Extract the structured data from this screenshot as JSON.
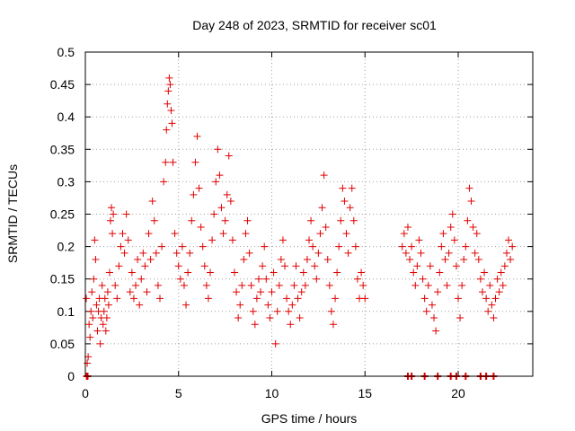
{
  "chart_data": {
    "type": "scatter",
    "title": "Day 248 of 2023, SRMTID for receiver sc01",
    "xlabel": "GPS time / hours",
    "ylabel": "SRMTID / TECUs",
    "xlim": [
      0,
      24
    ],
    "ylim": [
      0,
      0.5
    ],
    "x_ticks": [
      0,
      5,
      10,
      15,
      20
    ],
    "x_tick_labels": [
      "0",
      "5",
      "10",
      "15",
      "20"
    ],
    "y_ticks": [
      0,
      0.05,
      0.1,
      0.15,
      0.2,
      0.25,
      0.3,
      0.35,
      0.4,
      0.45,
      0.5
    ],
    "y_tick_labels": [
      "0",
      "0.05",
      "0.1",
      "0.15",
      "0.2",
      "0.25",
      "0.3",
      "0.35",
      "0.4",
      "0.45",
      "0.5"
    ],
    "grid": true,
    "legend": "none",
    "series": [
      {
        "name": "SRMTID",
        "color": "#e00000",
        "marker": "plus",
        "points": [
          [
            0.05,
            0.12
          ],
          [
            0.1,
            0.02
          ],
          [
            0.15,
            0.03
          ],
          [
            0.2,
            0.08
          ],
          [
            0.25,
            0.06
          ],
          [
            0.3,
            0.1
          ],
          [
            0.35,
            0.13
          ],
          [
            0.4,
            0.09
          ],
          [
            0.45,
            0.15
          ],
          [
            0.5,
            0.21
          ],
          [
            0.55,
            0.18
          ],
          [
            0.6,
            0.11
          ],
          [
            0.65,
            0.07
          ],
          [
            0.7,
            0.1
          ],
          [
            0.75,
            0.12
          ],
          [
            0.8,
            0.05
          ],
          [
            0.85,
            0.09
          ],
          [
            0.9,
            0.14
          ],
          [
            0.95,
            0.08
          ],
          [
            1.0,
            0.1
          ],
          [
            1.05,
            0.12
          ],
          [
            1.1,
            0.07
          ],
          [
            1.15,
            0.09
          ],
          [
            1.2,
            0.13
          ],
          [
            1.25,
            0.11
          ],
          [
            1.3,
            0.16
          ],
          [
            1.35,
            0.24
          ],
          [
            1.4,
            0.26
          ],
          [
            1.45,
            0.22
          ],
          [
            1.5,
            0.25
          ],
          [
            1.6,
            0.14
          ],
          [
            1.7,
            0.12
          ],
          [
            1.8,
            0.17
          ],
          [
            1.9,
            0.2
          ],
          [
            2.0,
            0.22
          ],
          [
            2.1,
            0.19
          ],
          [
            2.2,
            0.25
          ],
          [
            2.3,
            0.21
          ],
          [
            2.4,
            0.13
          ],
          [
            2.5,
            0.16
          ],
          [
            2.6,
            0.12
          ],
          [
            2.7,
            0.14
          ],
          [
            2.8,
            0.18
          ],
          [
            2.9,
            0.11
          ],
          [
            3.0,
            0.15
          ],
          [
            3.1,
            0.19
          ],
          [
            3.2,
            0.17
          ],
          [
            3.3,
            0.13
          ],
          [
            3.4,
            0.22
          ],
          [
            3.5,
            0.18
          ],
          [
            3.6,
            0.27
          ],
          [
            3.7,
            0.24
          ],
          [
            3.8,
            0.19
          ],
          [
            3.9,
            0.14
          ],
          [
            4.0,
            0.12
          ],
          [
            4.1,
            0.2
          ],
          [
            4.2,
            0.3
          ],
          [
            4.3,
            0.33
          ],
          [
            4.35,
            0.38
          ],
          [
            4.4,
            0.42
          ],
          [
            4.45,
            0.44
          ],
          [
            4.5,
            0.46
          ],
          [
            4.55,
            0.45
          ],
          [
            4.6,
            0.41
          ],
          [
            4.65,
            0.39
          ],
          [
            4.7,
            0.33
          ],
          [
            4.8,
            0.22
          ],
          [
            4.9,
            0.19
          ],
          [
            5.0,
            0.17
          ],
          [
            5.1,
            0.15
          ],
          [
            5.2,
            0.2
          ],
          [
            5.3,
            0.14
          ],
          [
            5.4,
            0.11
          ],
          [
            5.5,
            0.16
          ],
          [
            5.6,
            0.19
          ],
          [
            5.7,
            0.24
          ],
          [
            5.8,
            0.28
          ],
          [
            5.9,
            0.33
          ],
          [
            6.0,
            0.37
          ],
          [
            6.1,
            0.29
          ],
          [
            6.2,
            0.23
          ],
          [
            6.3,
            0.2
          ],
          [
            6.4,
            0.17
          ],
          [
            6.5,
            0.14
          ],
          [
            6.6,
            0.12
          ],
          [
            6.7,
            0.16
          ],
          [
            6.8,
            0.21
          ],
          [
            6.9,
            0.25
          ],
          [
            7.0,
            0.3
          ],
          [
            7.1,
            0.35
          ],
          [
            7.2,
            0.31
          ],
          [
            7.3,
            0.26
          ],
          [
            7.4,
            0.22
          ],
          [
            7.5,
            0.24
          ],
          [
            7.6,
            0.28
          ],
          [
            7.7,
            0.34
          ],
          [
            7.8,
            0.27
          ],
          [
            7.9,
            0.21
          ],
          [
            8.0,
            0.16
          ],
          [
            8.1,
            0.13
          ],
          [
            8.2,
            0.09
          ],
          [
            8.3,
            0.11
          ],
          [
            8.4,
            0.14
          ],
          [
            8.5,
            0.18
          ],
          [
            8.6,
            0.22
          ],
          [
            8.7,
            0.24
          ],
          [
            8.8,
            0.19
          ],
          [
            8.9,
            0.14
          ],
          [
            9.0,
            0.1
          ],
          [
            9.1,
            0.08
          ],
          [
            9.2,
            0.12
          ],
          [
            9.3,
            0.15
          ],
          [
            9.4,
            0.13
          ],
          [
            9.5,
            0.17
          ],
          [
            9.6,
            0.2
          ],
          [
            9.7,
            0.15
          ],
          [
            9.8,
            0.11
          ],
          [
            9.9,
            0.09
          ],
          [
            10.0,
            0.13
          ],
          [
            10.1,
            0.16
          ],
          [
            10.2,
            0.05
          ],
          [
            10.3,
            0.1
          ],
          [
            10.4,
            0.14
          ],
          [
            10.5,
            0.18
          ],
          [
            10.6,
            0.21
          ],
          [
            10.7,
            0.17
          ],
          [
            10.8,
            0.12
          ],
          [
            10.9,
            0.1
          ],
          [
            11.0,
            0.08
          ],
          [
            11.1,
            0.11
          ],
          [
            11.2,
            0.14
          ],
          [
            11.3,
            0.17
          ],
          [
            11.4,
            0.12
          ],
          [
            11.5,
            0.09
          ],
          [
            11.6,
            0.13
          ],
          [
            11.7,
            0.16
          ],
          [
            11.8,
            0.14
          ],
          [
            11.9,
            0.18
          ],
          [
            12.0,
            0.21
          ],
          [
            12.1,
            0.24
          ],
          [
            12.2,
            0.2
          ],
          [
            12.3,
            0.17
          ],
          [
            12.4,
            0.15
          ],
          [
            12.5,
            0.19
          ],
          [
            12.6,
            0.22
          ],
          [
            12.7,
            0.26
          ],
          [
            12.8,
            0.31
          ],
          [
            12.9,
            0.23
          ],
          [
            13.0,
            0.18
          ],
          [
            13.1,
            0.14
          ],
          [
            13.2,
            0.1
          ],
          [
            13.3,
            0.08
          ],
          [
            13.4,
            0.12
          ],
          [
            13.5,
            0.16
          ],
          [
            13.6,
            0.2
          ],
          [
            13.7,
            0.24
          ],
          [
            13.8,
            0.29
          ],
          [
            13.9,
            0.27
          ],
          [
            14.0,
            0.22
          ],
          [
            14.1,
            0.19
          ],
          [
            14.2,
            0.26
          ],
          [
            14.3,
            0.29
          ],
          [
            14.4,
            0.24
          ],
          [
            14.5,
            0.2
          ],
          [
            14.6,
            0.15
          ],
          [
            14.7,
            0.12
          ],
          [
            14.8,
            0.16
          ],
          [
            14.9,
            0.14
          ],
          [
            15.0,
            0.12
          ],
          [
            17.0,
            0.2
          ],
          [
            17.1,
            0.22
          ],
          [
            17.2,
            0.19
          ],
          [
            17.3,
            0.23
          ],
          [
            17.4,
            0.18
          ],
          [
            17.5,
            0.2
          ],
          [
            17.6,
            0.16
          ],
          [
            17.7,
            0.14
          ],
          [
            17.8,
            0.17
          ],
          [
            17.9,
            0.21
          ],
          [
            18.0,
            0.19
          ],
          [
            18.1,
            0.15
          ],
          [
            18.2,
            0.12
          ],
          [
            18.3,
            0.1
          ],
          [
            18.4,
            0.14
          ],
          [
            18.5,
            0.17
          ],
          [
            18.6,
            0.11
          ],
          [
            18.7,
            0.09
          ],
          [
            18.8,
            0.07
          ],
          [
            18.9,
            0.13
          ],
          [
            19.0,
            0.16
          ],
          [
            19.1,
            0.2
          ],
          [
            19.2,
            0.22
          ],
          [
            19.3,
            0.18
          ],
          [
            19.4,
            0.14
          ],
          [
            19.5,
            0.19
          ],
          [
            19.6,
            0.23
          ],
          [
            19.7,
            0.25
          ],
          [
            19.8,
            0.21
          ],
          [
            19.9,
            0.17
          ],
          [
            20.0,
            0.12
          ],
          [
            20.1,
            0.09
          ],
          [
            20.2,
            0.14
          ],
          [
            20.3,
            0.18
          ],
          [
            20.4,
            0.2
          ],
          [
            20.5,
            0.24
          ],
          [
            20.6,
            0.29
          ],
          [
            20.7,
            0.27
          ],
          [
            20.8,
            0.23
          ],
          [
            20.9,
            0.19
          ],
          [
            21.0,
            0.22
          ],
          [
            21.1,
            0.18
          ],
          [
            21.2,
            0.15
          ],
          [
            21.3,
            0.13
          ],
          [
            21.4,
            0.16
          ],
          [
            21.5,
            0.12
          ],
          [
            21.6,
            0.1
          ],
          [
            21.7,
            0.14
          ],
          [
            21.8,
            0.11
          ],
          [
            21.9,
            0.09
          ],
          [
            22.0,
            0.12
          ],
          [
            22.1,
            0.15
          ],
          [
            22.2,
            0.13
          ],
          [
            22.3,
            0.16
          ],
          [
            22.4,
            0.14
          ],
          [
            22.5,
            0.17
          ],
          [
            22.6,
            0.19
          ],
          [
            22.7,
            0.21
          ],
          [
            22.8,
            0.18
          ],
          [
            22.9,
            0.2
          ],
          [
            0.08,
            0.0
          ],
          [
            0.12,
            0.0
          ],
          [
            17.3,
            0.0
          ],
          [
            17.5,
            0.0
          ],
          [
            18.2,
            0.0
          ],
          [
            18.9,
            0.0
          ],
          [
            19.6,
            0.0
          ],
          [
            19.9,
            0.0
          ],
          [
            20.4,
            0.0
          ],
          [
            21.2,
            0.0
          ],
          [
            21.5,
            0.0
          ],
          [
            21.9,
            0.0
          ]
        ]
      }
    ]
  }
}
